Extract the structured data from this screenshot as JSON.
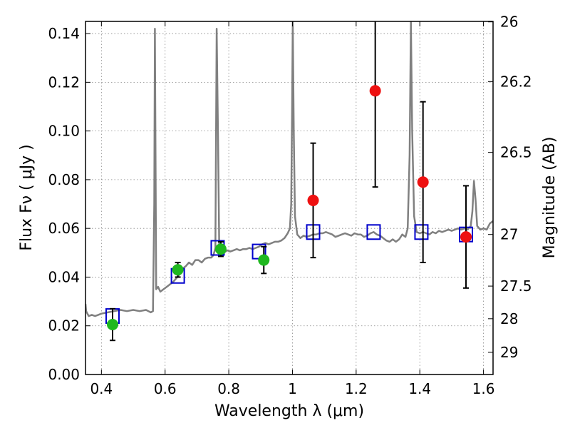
{
  "chart_data": {
    "type": "scatter",
    "xlabel": "Wavelength  λ (μm)",
    "ylabel": "Flux  Fν  ( μJy )",
    "ylabel_right": "Magnitude (AB)",
    "xlim": [
      0.35,
      1.63
    ],
    "ylim": [
      0.0,
      0.145
    ],
    "grid": true,
    "x_ticks": [
      0.4,
      0.6,
      0.8,
      1.0,
      1.2,
      1.4,
      1.6
    ],
    "x_tick_labels": [
      "0.4",
      "0.6",
      "0.8",
      "1",
      "1.2",
      "1.4",
      "1.6"
    ],
    "y_ticks": [
      0.0,
      0.02,
      0.04,
      0.06,
      0.08,
      0.1,
      0.12,
      0.14
    ],
    "y_tick_labels": [
      "0.00",
      "0.02",
      "0.04",
      "0.06",
      "0.08",
      "0.10",
      "0.12",
      "0.14"
    ],
    "right_ticks": [
      {
        "label": "26",
        "flux": 0.1448
      },
      {
        "label": "26.2",
        "flux": 0.1203
      },
      {
        "label": "26.5",
        "flux": 0.0912
      },
      {
        "label": "27",
        "flux": 0.0575
      },
      {
        "label": "27.5",
        "flux": 0.0363
      },
      {
        "label": "28",
        "flux": 0.0229
      },
      {
        "label": "29",
        "flux": 0.0091
      }
    ],
    "colors": {
      "spectrum": "#808080",
      "model_squares": "#0000cc",
      "observed_green": "#1fb81f",
      "observed_red": "#ee1111",
      "errorbar": "#000000",
      "grid": "#888888"
    },
    "series": [
      {
        "kind": "spectrum",
        "points": [
          [
            0.35,
            0.029
          ],
          [
            0.352,
            0.026
          ],
          [
            0.356,
            0.025
          ],
          [
            0.36,
            0.024
          ],
          [
            0.37,
            0.0245
          ],
          [
            0.38,
            0.024
          ],
          [
            0.39,
            0.0245
          ],
          [
            0.4,
            0.025
          ],
          [
            0.42,
            0.0255
          ],
          [
            0.44,
            0.026
          ],
          [
            0.46,
            0.0265
          ],
          [
            0.48,
            0.026
          ],
          [
            0.5,
            0.0265
          ],
          [
            0.52,
            0.026
          ],
          [
            0.54,
            0.0265
          ],
          [
            0.555,
            0.0255
          ],
          [
            0.562,
            0.026
          ],
          [
            0.566,
            0.07
          ],
          [
            0.568,
            0.142
          ],
          [
            0.57,
            0.09
          ],
          [
            0.572,
            0.035
          ],
          [
            0.578,
            0.036
          ],
          [
            0.585,
            0.034
          ],
          [
            0.595,
            0.035
          ],
          [
            0.605,
            0.036
          ],
          [
            0.615,
            0.037
          ],
          [
            0.625,
            0.038
          ],
          [
            0.635,
            0.0395
          ],
          [
            0.645,
            0.041
          ],
          [
            0.655,
            0.0435
          ],
          [
            0.665,
            0.0445
          ],
          [
            0.675,
            0.046
          ],
          [
            0.685,
            0.045
          ],
          [
            0.695,
            0.047
          ],
          [
            0.705,
            0.047
          ],
          [
            0.715,
            0.046
          ],
          [
            0.725,
            0.0475
          ],
          [
            0.735,
            0.048
          ],
          [
            0.745,
            0.048
          ],
          [
            0.752,
            0.049
          ],
          [
            0.758,
            0.052
          ],
          [
            0.762,
            0.142
          ],
          [
            0.766,
            0.1
          ],
          [
            0.77,
            0.052
          ],
          [
            0.776,
            0.0495
          ],
          [
            0.785,
            0.05
          ],
          [
            0.795,
            0.051
          ],
          [
            0.805,
            0.0505
          ],
          [
            0.815,
            0.051
          ],
          [
            0.825,
            0.0515
          ],
          [
            0.835,
            0.051
          ],
          [
            0.845,
            0.0515
          ],
          [
            0.855,
            0.0515
          ],
          [
            0.865,
            0.052
          ],
          [
            0.875,
            0.0515
          ],
          [
            0.885,
            0.052
          ],
          [
            0.895,
            0.0525
          ],
          [
            0.905,
            0.0535
          ],
          [
            0.915,
            0.054
          ],
          [
            0.925,
            0.0535
          ],
          [
            0.935,
            0.054
          ],
          [
            0.945,
            0.0545
          ],
          [
            0.955,
            0.0545
          ],
          [
            0.965,
            0.055
          ],
          [
            0.975,
            0.056
          ],
          [
            0.985,
            0.058
          ],
          [
            0.992,
            0.06
          ],
          [
            0.996,
            0.07
          ],
          [
            0.999,
            0.11
          ],
          [
            1.001,
            0.145
          ],
          [
            1.004,
            0.1
          ],
          [
            1.008,
            0.065
          ],
          [
            1.015,
            0.0575
          ],
          [
            1.025,
            0.056
          ],
          [
            1.035,
            0.057
          ],
          [
            1.045,
            0.0565
          ],
          [
            1.055,
            0.057
          ],
          [
            1.065,
            0.0575
          ],
          [
            1.075,
            0.0575
          ],
          [
            1.085,
            0.058
          ],
          [
            1.095,
            0.058
          ],
          [
            1.105,
            0.0585
          ],
          [
            1.115,
            0.058
          ],
          [
            1.125,
            0.0575
          ],
          [
            1.135,
            0.0565
          ],
          [
            1.145,
            0.057
          ],
          [
            1.155,
            0.0575
          ],
          [
            1.165,
            0.058
          ],
          [
            1.175,
            0.0575
          ],
          [
            1.185,
            0.057
          ],
          [
            1.195,
            0.058
          ],
          [
            1.205,
            0.0575
          ],
          [
            1.215,
            0.0575
          ],
          [
            1.225,
            0.0565
          ],
          [
            1.235,
            0.057
          ],
          [
            1.245,
            0.058
          ],
          [
            1.255,
            0.0585
          ],
          [
            1.265,
            0.0575
          ],
          [
            1.275,
            0.057
          ],
          [
            1.285,
            0.056
          ],
          [
            1.295,
            0.055
          ],
          [
            1.305,
            0.0545
          ],
          [
            1.315,
            0.0555
          ],
          [
            1.325,
            0.0545
          ],
          [
            1.335,
            0.0555
          ],
          [
            1.345,
            0.0575
          ],
          [
            1.355,
            0.0565
          ],
          [
            1.362,
            0.06
          ],
          [
            1.368,
            0.09
          ],
          [
            1.372,
            0.145
          ],
          [
            1.376,
            0.1
          ],
          [
            1.382,
            0.065
          ],
          [
            1.39,
            0.0585
          ],
          [
            1.4,
            0.058
          ],
          [
            1.41,
            0.0585
          ],
          [
            1.42,
            0.058
          ],
          [
            1.43,
            0.0575
          ],
          [
            1.44,
            0.0585
          ],
          [
            1.45,
            0.058
          ],
          [
            1.46,
            0.059
          ],
          [
            1.47,
            0.0585
          ],
          [
            1.48,
            0.059
          ],
          [
            1.49,
            0.0595
          ],
          [
            1.5,
            0.059
          ],
          [
            1.51,
            0.0595
          ],
          [
            1.52,
            0.06
          ],
          [
            1.53,
            0.0595
          ],
          [
            1.54,
            0.06
          ],
          [
            1.55,
            0.0595
          ],
          [
            1.56,
            0.061
          ],
          [
            1.565,
            0.067
          ],
          [
            1.57,
            0.0795
          ],
          [
            1.575,
            0.072
          ],
          [
            1.58,
            0.061
          ],
          [
            1.59,
            0.0595
          ],
          [
            1.6,
            0.06
          ],
          [
            1.61,
            0.0595
          ],
          [
            1.62,
            0.062
          ],
          [
            1.63,
            0.063
          ]
        ]
      },
      {
        "kind": "model",
        "marker": "open-square",
        "points": [
          [
            0.435,
            0.024
          ],
          [
            0.64,
            0.0405
          ],
          [
            0.765,
            0.052
          ],
          [
            0.895,
            0.0505
          ],
          [
            1.065,
            0.0585
          ],
          [
            1.255,
            0.0585
          ],
          [
            1.405,
            0.0585
          ],
          [
            1.545,
            0.0575
          ]
        ]
      },
      {
        "kind": "observed",
        "marker": "filled-circle",
        "color_key": "observed_green",
        "points": [
          {
            "x": 0.435,
            "y": 0.0205,
            "err": 0.0065
          },
          {
            "x": 0.64,
            "y": 0.043,
            "err": 0.003
          },
          {
            "x": 0.775,
            "y": 0.0515,
            "err": 0.003
          },
          {
            "x": 0.91,
            "y": 0.047,
            "err": 0.0055
          }
        ]
      },
      {
        "kind": "observed",
        "marker": "filled-circle",
        "color_key": "observed_red",
        "points": [
          {
            "x": 1.065,
            "y": 0.0715,
            "err": 0.0235
          },
          {
            "x": 1.26,
            "y": 0.1165,
            "err": 0.0395
          },
          {
            "x": 1.41,
            "y": 0.079,
            "err": 0.033
          },
          {
            "x": 1.545,
            "y": 0.0565,
            "err": 0.021
          }
        ]
      }
    ]
  }
}
